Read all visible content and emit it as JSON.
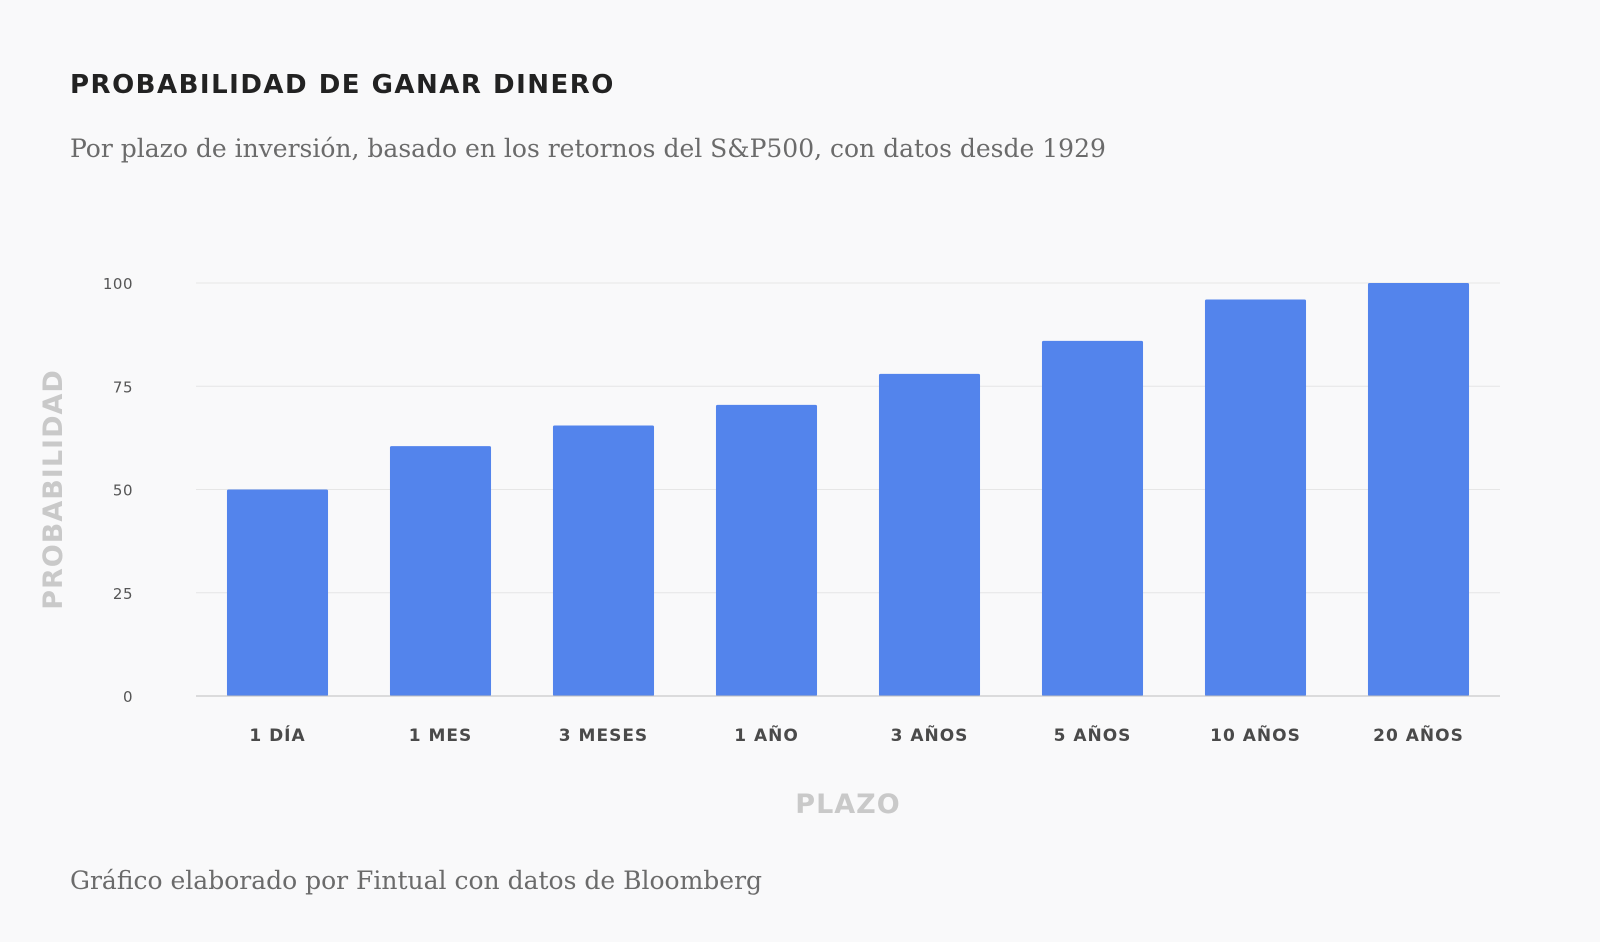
{
  "title": "PROBABILIDAD DE GANAR DINERO",
  "subtitle": "Por plazo de inversión, basado en los retornos del S&P500, con datos desde 1929",
  "footer": "Gráfico elaborado por Fintual con datos de Bloomberg",
  "chart_data": {
    "type": "bar",
    "categories": [
      "1 DÍA",
      "1 MES",
      "3 MESES",
      "1 AÑO",
      "3 AÑOS",
      "5 AÑOS",
      "10 AÑOS",
      "20 AÑOS"
    ],
    "values": [
      50,
      60.5,
      65.5,
      70.5,
      78,
      86,
      96,
      100
    ],
    "xlabel": "PLAZO",
    "ylabel": "PROBABILIDAD",
    "ylim": [
      0,
      100
    ],
    "yticks": [
      0,
      25,
      50,
      75,
      100
    ],
    "grid": true,
    "bar_color": "#5384ec",
    "grid_color": "#e6e6e6",
    "axis_color": "#bdbdbd"
  }
}
